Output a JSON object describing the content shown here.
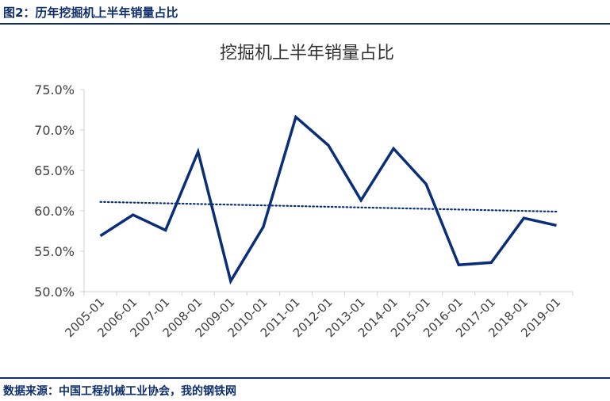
{
  "header": {
    "figure_title": "图2：历年挖掘机上半年销量占比"
  },
  "footer": {
    "source": "数据来源：中国工程机械工业协会，我的钢铁网"
  },
  "colors": {
    "accent": "#0f2f6b",
    "series_line": "#0a2e78",
    "trend_line": "#0a2e78",
    "axis": "#d0d0d0"
  },
  "chart_data": {
    "type": "line",
    "title": "挖掘机上半年销量占比",
    "xlabel": "",
    "ylabel": "",
    "categories": [
      "2005-01",
      "2006-01",
      "2007-01",
      "2008-01",
      "2009-01",
      "2010-01",
      "2011-01",
      "2012-01",
      "2013-01",
      "2014-01",
      "2015-01",
      "2016-01",
      "2017-01",
      "2018-01",
      "2019-01"
    ],
    "series": [
      {
        "values": [
          56.9,
          59.5,
          57.6,
          67.3,
          51.3,
          58.0,
          71.6,
          68.1,
          61.3,
          67.7,
          63.3,
          53.3,
          53.6,
          59.1,
          58.2
        ],
        "style": "solid"
      }
    ],
    "trendline": {
      "type": "linear",
      "style": "dotted",
      "start": 61.1,
      "end": 59.9
    },
    "ylim": [
      50,
      75
    ],
    "yticks": [
      50,
      55,
      60,
      65,
      70,
      75
    ],
    "ytick_labels": [
      "50.0%",
      "55.0%",
      "60.0%",
      "65.0%",
      "70.0%",
      "75.0%"
    ],
    "grid": false,
    "legend": "none"
  }
}
